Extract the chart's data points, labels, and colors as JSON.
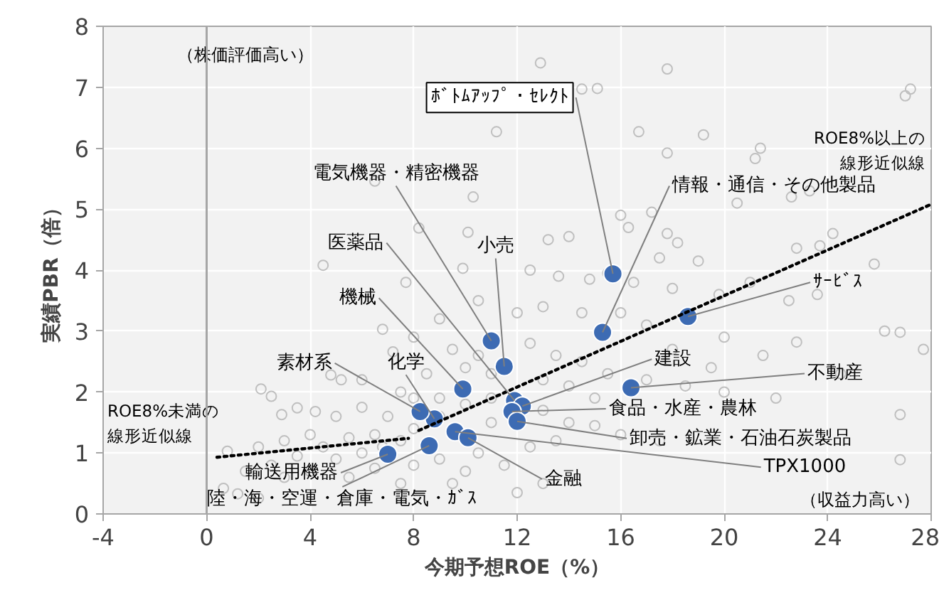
{
  "chart_data": {
    "type": "scatter",
    "xlabel": "今期予想ROE（%）",
    "ylabel": "実績PBR（倍）",
    "xlim": [
      -4,
      28
    ],
    "ylim": [
      0,
      8
    ],
    "xticks": [
      -4,
      0,
      4,
      8,
      12,
      16,
      20,
      24,
      28
    ],
    "yticks": [
      0,
      1,
      2,
      3,
      4,
      5,
      6,
      7,
      8
    ],
    "grid": true,
    "marker": "circle",
    "ref_lines": [
      {
        "axis": "x",
        "value": 0,
        "color": "#a6a6a6"
      }
    ],
    "series": [
      {
        "color": "#bfbfbf",
        "x": [
          12.9,
          15.1,
          14.5,
          17.8,
          27.2,
          27.0,
          11.2,
          16.7,
          19.2,
          17.8,
          21.4,
          21.2,
          6.5,
          10.3,
          8.2,
          10.1,
          4.5,
          7.7,
          9.9,
          24.2,
          25.8,
          23.7,
          22.8,
          20.5,
          23.3,
          22.6,
          16.0,
          16.3,
          17.2,
          17.8,
          18.2,
          19.0,
          17.5,
          14.0,
          13.2,
          12.5,
          13.6,
          14.8,
          15.5,
          16.5,
          18.0,
          19.8,
          21.0,
          22.5,
          23.6,
          26.2,
          26.8,
          22.8,
          27.7,
          26.8,
          26.8,
          24.5,
          21.5,
          20.0,
          19.5,
          18.0,
          17.0,
          16.0,
          14.5,
          13.0,
          12.0,
          10.5,
          9.0,
          6.8,
          7.2,
          8.0,
          9.5,
          10.5,
          12.5,
          13.5,
          14.5,
          15.5,
          17.0,
          18.5,
          20.0,
          22.0,
          16.5,
          15.0,
          14.0,
          13.0,
          11.0,
          10.0,
          8.5,
          7.5,
          6.0,
          4.8,
          5.2,
          2.1,
          2.5,
          2.9,
          3.5,
          4.2,
          5.0,
          6.0,
          7.0,
          8.0,
          9.0,
          10.0,
          11.0,
          13.0,
          14.0,
          15.0,
          16.0,
          17.5,
          13.5,
          12.5,
          11.0,
          10.5,
          9.0,
          8.0,
          7.5,
          6.5,
          6.0,
          5.5,
          5.0,
          4.5,
          4.0,
          3.5,
          3.0,
          2.5,
          2.0,
          1.5,
          0.8,
          0.65,
          1.2,
          2.0,
          3.0,
          4.0,
          5.5,
          6.5,
          6.8,
          8.0,
          9.0,
          10.0,
          11.5,
          13.0,
          12.0,
          9.5,
          7.5
        ],
        "values": [
          7.4,
          6.98,
          6.97,
          7.3,
          6.97,
          6.86,
          6.27,
          6.27,
          6.22,
          5.92,
          6.0,
          5.83,
          5.46,
          5.2,
          4.69,
          4.62,
          4.08,
          3.8,
          4.03,
          4.6,
          4.1,
          4.4,
          4.36,
          5.1,
          5.3,
          5.2,
          4.9,
          4.7,
          4.95,
          4.6,
          4.45,
          4.15,
          4.2,
          4.55,
          4.5,
          4.0,
          3.9,
          3.85,
          3.95,
          3.8,
          3.7,
          3.6,
          3.8,
          3.5,
          3.6,
          3.0,
          2.98,
          2.82,
          2.7,
          1.63,
          0.89,
          2.3,
          2.6,
          2.9,
          2.4,
          2.7,
          3.1,
          3.3,
          3.3,
          3.4,
          3.3,
          3.5,
          3.2,
          3.03,
          2.66,
          2.9,
          2.7,
          2.6,
          2.8,
          2.6,
          2.5,
          2.3,
          2.2,
          2.1,
          2.0,
          1.9,
          1.7,
          1.9,
          2.1,
          2.2,
          2.3,
          2.4,
          2.3,
          2.0,
          2.2,
          2.28,
          2.2,
          2.05,
          1.93,
          1.63,
          1.74,
          1.68,
          1.6,
          1.75,
          1.6,
          1.9,
          1.9,
          1.8,
          1.9,
          1.7,
          1.5,
          1.45,
          1.3,
          1.2,
          1.2,
          1.1,
          1.5,
          1.0,
          1.6,
          1.4,
          1.2,
          1.3,
          1.0,
          1.25,
          0.9,
          1.1,
          1.3,
          0.95,
          1.2,
          0.8,
          1.1,
          0.7,
          1.03,
          0.42,
          0.33,
          0.26,
          0.6,
          0.7,
          0.6,
          0.75,
          1.1,
          0.8,
          0.9,
          0.7,
          0.8,
          0.5,
          0.35,
          0.5,
          0.5
        ]
      },
      {
        "color": "#3d6bb3",
        "x": [
          15.7,
          15.3,
          18.6,
          16.4,
          11.0,
          11.5,
          11.9,
          9.9,
          8.8,
          8.25,
          12.2,
          11.8,
          12.0,
          9.6,
          10.1,
          7.0,
          8.6
        ],
        "values": [
          3.94,
          2.98,
          3.24,
          2.07,
          2.84,
          2.42,
          1.86,
          2.05,
          1.56,
          1.68,
          1.77,
          1.68,
          1.52,
          1.35,
          1.25,
          0.98,
          1.12
        ]
      },
      {
        "type": "line",
        "name": "ROE8%未満の線形近似線",
        "color": "#000000",
        "line_style": "dotted",
        "marker": "none",
        "x": [
          0.4,
          7.8
        ],
        "values": [
          0.93,
          1.24
        ]
      },
      {
        "type": "line",
        "name": "ROE8%以上の線形近似線",
        "color": "#000000",
        "line_style": "dotted",
        "marker": "none",
        "x": [
          8.2,
          28
        ],
        "values": [
          1.37,
          5.08
        ]
      }
    ],
    "annotations": [
      {
        "text": "ﾎﾞﾄﾑｱｯﾌﾟ・ｾﾚｸﾄ",
        "x": 15.7,
        "y": 3.94
      },
      {
        "text": "情報・通信・その他製品",
        "x": 15.3,
        "y": 2.98
      },
      {
        "text": "ｻｰﾋﾞｽ",
        "x": 18.6,
        "y": 3.24
      },
      {
        "text": "不動産",
        "x": 16.4,
        "y": 2.07
      },
      {
        "text": "電気機器・精密機器",
        "x": 11.0,
        "y": 2.84
      },
      {
        "text": "小売",
        "x": 11.5,
        "y": 2.42
      },
      {
        "text": "医薬品",
        "x": 11.9,
        "y": 1.86
      },
      {
        "text": "機械",
        "x": 9.9,
        "y": 2.05
      },
      {
        "text": "化学",
        "x": 8.8,
        "y": 1.56
      },
      {
        "text": "素材系",
        "x": 8.25,
        "y": 1.68
      },
      {
        "text": "建設",
        "x": 12.2,
        "y": 1.77
      },
      {
        "text": "食品・水産・農林",
        "x": 11.8,
        "y": 1.68
      },
      {
        "text": "卸売・鉱業・石油石炭製品",
        "x": 12.0,
        "y": 1.52
      },
      {
        "text": "TPX1000",
        "x": 9.6,
        "y": 1.35
      },
      {
        "text": "金融",
        "x": 10.1,
        "y": 1.25
      },
      {
        "text": "輸送用機器",
        "x": 7.0,
        "y": 0.98
      },
      {
        "text": "陸・海・空運・倉庫・電気・ｶﾞｽ",
        "x": 8.6,
        "y": 1.12
      },
      "（株価評価高い）",
      "（収益力高い）"
    ]
  }
}
